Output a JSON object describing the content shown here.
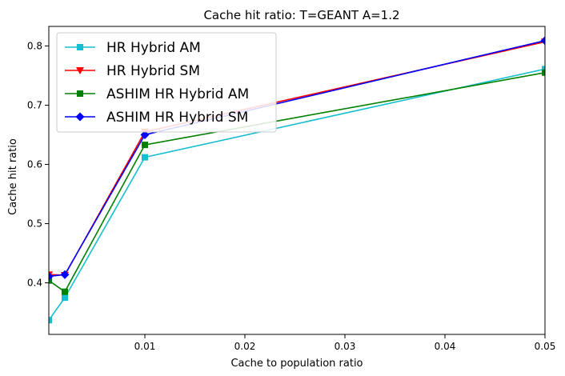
{
  "chart_data": {
    "type": "line",
    "title": "Cache hit ratio: T=GEANT A=1.2",
    "xlabel": "Cache to population ratio",
    "ylabel": "Cache hit ratio",
    "xlim": [
      0.0004,
      0.05
    ],
    "ylim": [
      0.313,
      0.833
    ],
    "xticks": [
      0.01,
      0.02,
      0.03,
      0.04,
      0.05
    ],
    "xtick_labels": [
      "0.01",
      "0.02",
      "0.03",
      "0.04",
      "0.05"
    ],
    "yticks": [
      0.4,
      0.5,
      0.6,
      0.7,
      0.8
    ],
    "ytick_labels": [
      "0.4",
      "0.5",
      "0.6",
      "0.7",
      "0.8"
    ],
    "grid": false,
    "legend_position": "top-left",
    "x": [
      0.0004,
      0.002,
      0.01,
      0.05
    ],
    "series": [
      {
        "name": "HR Hybrid AM",
        "color": "#17becf",
        "marker": "square",
        "values": [
          0.337,
          0.375,
          0.612,
          0.761
        ]
      },
      {
        "name": "HR Hybrid SM",
        "color": "#ff0000",
        "marker": "triangle-down",
        "values": [
          0.414,
          0.413,
          0.655,
          0.807
        ]
      },
      {
        "name": "ASHIM HR Hybrid AM",
        "color": "#008000",
        "marker": "square",
        "values": [
          0.404,
          0.385,
          0.633,
          0.755
        ]
      },
      {
        "name": "ASHIM HR Hybrid SM",
        "color": "#0000ff",
        "marker": "diamond",
        "values": [
          0.411,
          0.414,
          0.65,
          0.809
        ]
      }
    ]
  }
}
